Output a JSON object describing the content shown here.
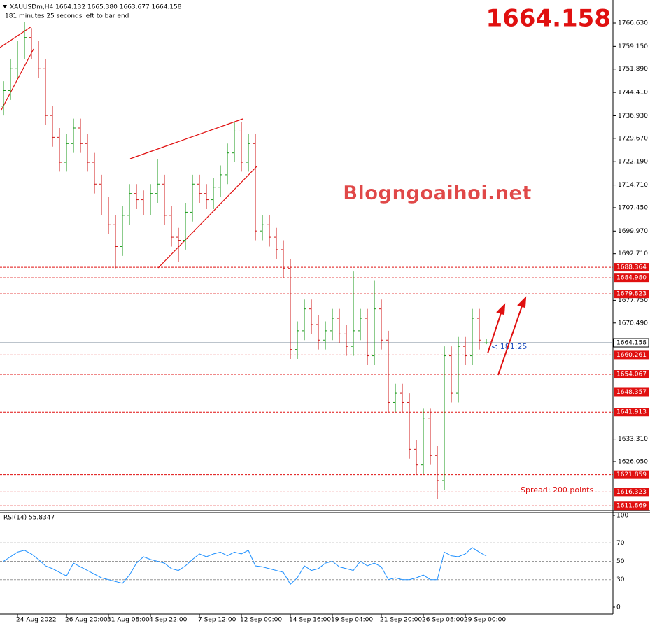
{
  "chart_data": {
    "type": "ohlc",
    "header": "XAUUSDm,H4  1664.132 1665.380 1663.677 1664.158",
    "subtitle": "181 minutes 25 seconds left to bar end",
    "watermark": "Blogngoaihoi.net",
    "countdown": "< 181:25",
    "spread": "Spread: 200 points",
    "categories": [
      null,
      null,
      "24 Aug 2022",
      null,
      null,
      null,
      null,
      null,
      null,
      "26 Aug 20:00",
      null,
      null,
      null,
      null,
      null,
      "31 Aug 08:00",
      null,
      null,
      null,
      null,
      null,
      "4 Sep 22:00",
      null,
      null,
      null,
      null,
      null,
      null,
      "7 Sep 12:00",
      null,
      null,
      null,
      null,
      null,
      "12 Sep 00:00",
      null,
      null,
      null,
      null,
      null,
      null,
      "14 Sep 16:00",
      null,
      null,
      null,
      null,
      null,
      "19 Sep 04:00",
      null,
      null,
      null,
      null,
      null,
      null,
      "21 Sep 20:00",
      null,
      null,
      null,
      null,
      null,
      "26 Sep 08:00",
      null,
      null,
      null,
      null,
      null,
      "29 Sep 00:00",
      null,
      null,
      null
    ],
    "open": [
      1740,
      1745,
      1752,
      1758,
      1762,
      1758,
      1752,
      1737,
      1730,
      1722,
      1728,
      1733,
      1728,
      1722,
      1715,
      1708,
      1702,
      1695,
      1705,
      1712,
      1710,
      1708,
      1712,
      1715,
      1705,
      1698,
      1697,
      1706,
      1715,
      1712,
      1710,
      1714,
      1718,
      1725,
      1732,
      1722,
      1728,
      1700,
      1702,
      1698,
      1694,
      1688,
      1662,
      1668,
      1675,
      1670,
      1665,
      1668,
      1672,
      1667,
      1663,
      1668,
      1672,
      1660,
      1675,
      1665,
      1645,
      1648,
      1645,
      1630,
      1625,
      1640,
      1628,
      1620,
      1660,
      1648,
      1663,
      1660,
      1672,
      1664.132
    ],
    "high": [
      1748,
      1755,
      1761,
      1767,
      1765,
      1761,
      1755,
      1740,
      1733,
      1731,
      1736,
      1736,
      1731,
      1725,
      1718,
      1711,
      1705,
      1708,
      1715,
      1715,
      1713,
      1715,
      1723,
      1718,
      1708,
      1701,
      1709,
      1718,
      1718,
      1715,
      1717,
      1721,
      1728,
      1735,
      1735,
      1731,
      1731,
      1705,
      1705,
      1701,
      1697,
      1691,
      1671,
      1678,
      1678,
      1673,
      1671,
      1675,
      1675,
      1670,
      1687,
      1675,
      1675,
      1684,
      1678,
      1668,
      1651,
      1651,
      1648,
      1633,
      1643,
      1643,
      1631,
      1663,
      1663,
      1666,
      1666,
      1675,
      1675,
      1665.38
    ],
    "low": [
      1737,
      1742,
      1749,
      1755,
      1755,
      1749,
      1734,
      1727,
      1719,
      1719,
      1725,
      1725,
      1719,
      1712,
      1705,
      1699,
      1688,
      1692,
      1702,
      1707,
      1705,
      1705,
      1709,
      1702,
      1695,
      1690,
      1694,
      1703,
      1709,
      1707,
      1707,
      1711,
      1715,
      1722,
      1719,
      1719,
      1697,
      1697,
      1695,
      1691,
      1685,
      1659,
      1659,
      1665,
      1667,
      1662,
      1662,
      1665,
      1664,
      1660,
      1660,
      1665,
      1657,
      1657,
      1662,
      1642,
      1642,
      1642,
      1627,
      1622,
      1622,
      1625,
      1614,
      1617,
      1645,
      1645,
      1657,
      1657,
      1662,
      1663.677
    ],
    "close": [
      1745,
      1752,
      1758,
      1762,
      1758,
      1752,
      1737,
      1730,
      1722,
      1728,
      1733,
      1728,
      1722,
      1715,
      1708,
      1702,
      1695,
      1705,
      1712,
      1710,
      1708,
      1712,
      1715,
      1705,
      1698,
      1697,
      1706,
      1715,
      1712,
      1710,
      1714,
      1718,
      1725,
      1732,
      1722,
      1728,
      1700,
      1702,
      1698,
      1694,
      1688,
      1662,
      1668,
      1675,
      1670,
      1665,
      1668,
      1672,
      1667,
      1663,
      1668,
      1672,
      1660,
      1675,
      1665,
      1645,
      1648,
      1645,
      1630,
      1625,
      1640,
      1628,
      1620,
      1660,
      1648,
      1663,
      1660,
      1672,
      1665,
      1664.158
    ],
    "up_color": "#1a9a1a",
    "down_color": "#d01818",
    "ylim": [
      1610.35,
      1774.03
    ],
    "yticks": [
      {
        "value": 1766.63,
        "label": "1766.630"
      },
      {
        "value": 1759.15,
        "label": "1759.150"
      },
      {
        "value": 1751.89,
        "label": "1751.890"
      },
      {
        "value": 1744.41,
        "label": "1744.410"
      },
      {
        "value": 1736.93,
        "label": "1736.930"
      },
      {
        "value": 1729.67,
        "label": "1729.670"
      },
      {
        "value": 1722.19,
        "label": "1722.190"
      },
      {
        "value": 1714.71,
        "label": "1714.710"
      },
      {
        "value": 1707.45,
        "label": "1707.450"
      },
      {
        "value": 1699.97,
        "label": "1699.970"
      },
      {
        "value": 1692.71,
        "label": "1692.710"
      },
      {
        "value": 1677.75,
        "label": "1677.750"
      },
      {
        "value": 1670.49,
        "label": "1670.490"
      },
      {
        "value": 1633.31,
        "label": "1633.310"
      },
      {
        "value": 1626.05,
        "label": "1626.050"
      }
    ],
    "levels": [
      1688.364,
      {
        "value": 1684.98,
        "label": "1684.980"
      },
      1679.823,
      1660.261,
      1654.067,
      1648.357,
      1641.913,
      1621.859,
      1616.323,
      1611.869
    ],
    "level_color": "#e01010",
    "rsi": {
      "title": "RSI(14) 55.8347",
      "color": "#1e90ff",
      "ylim": [
        0,
        100
      ],
      "yticks": [
        100,
        70,
        50,
        30,
        0
      ],
      "values": [
        50,
        55,
        60,
        62,
        58,
        52,
        45,
        42,
        38,
        34,
        48,
        44,
        40,
        36,
        32,
        30,
        28,
        26,
        35,
        48,
        55,
        52,
        50,
        48,
        42,
        40,
        45,
        52,
        58,
        55,
        58,
        60,
        56,
        60,
        58,
        62,
        45,
        44,
        42,
        40,
        38,
        25,
        32,
        45,
        40,
        42,
        48,
        50,
        44,
        42,
        40,
        50,
        45,
        48,
        44,
        30,
        32,
        30,
        30,
        32,
        35,
        30,
        30,
        60,
        56,
        55,
        58,
        65,
        60,
        55.8347
      ]
    }
  }
}
